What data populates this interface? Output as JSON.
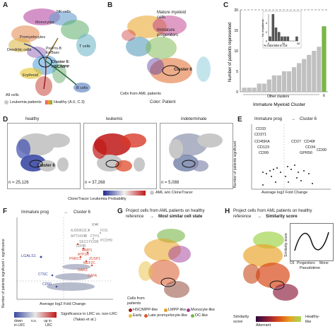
{
  "colors": {
    "healthy": "#f0a020",
    "leukemic": "#c01818",
    "indeterminate": "#7f8fb0",
    "aml_no_tracer": "#c8c8c8",
    "accent_green": "#7ab648",
    "bar_gray": "#c0c0c0"
  },
  "panelA": {
    "letter": "A",
    "labels": {
      "nk": "NK cells",
      "mono": "Monocytes",
      "promyelo": "Promyelocytes",
      "dendritic": "Dendritic cells",
      "preb": "Pre/Pro-B",
      "eobaso": "Eo/Baso",
      "tcells": "T cells",
      "cluster6": "Cluster 6:",
      "hscmpp": "HSC/MPP",
      "erythroid": "Erythroid",
      "bcells": "B cells",
      "allcells": "All cells"
    },
    "legend_leuk": "Leukemia patients",
    "legend_healthy": "Healthy (A.0, C.3)"
  },
  "panelB": {
    "letter": "B",
    "labels": {
      "mature": "Mature myeloid",
      "mature2": "cells",
      "immature": "Immature",
      "immature2": "progenitors",
      "cluster6": "Cluster 6",
      "aml": "Cells from AML patients"
    },
    "caption": "Color: Patient"
  },
  "panelC": {
    "letter": "C",
    "caption_other": "Other clusters",
    "inset_xlabel": "% total BM in C6",
    "inset_ylabel": "Nr. of patients",
    "inset_xticks": [
      "0",
      "20",
      "40"
    ],
    "inset_yticks": [
      "0",
      "2",
      "4"
    ]
  },
  "chart_data": [
    {
      "type": "bar",
      "ylabel": "Number of patients represented",
      "xlabel": "Immature Myeloid Cluster",
      "ylim": [
        0,
        20
      ],
      "yticks": [
        "0",
        "5",
        "10",
        "15",
        "20"
      ],
      "x_tick_label": "6",
      "values": [
        1,
        1,
        1,
        2,
        2,
        3,
        4,
        4,
        5,
        5,
        6,
        7,
        8,
        9,
        10,
        11,
        16
      ],
      "highlight_index": 16
    },
    {
      "type": "bar",
      "xlabel": "% total BM in C6",
      "ylabel": "Nr. of patients",
      "bins": [
        "0",
        "5",
        "10",
        "15",
        "20",
        "25",
        "30",
        "35",
        "40",
        "45"
      ],
      "values": [
        1,
        6,
        3,
        2,
        1,
        1,
        1,
        0,
        0,
        1
      ]
    }
  ],
  "panelD": {
    "letter": "D",
    "titles": [
      "healthy",
      "leukemic",
      "indeterminate"
    ],
    "counts": [
      "n = 25,126",
      "n = 37,268",
      "n = 5,088"
    ],
    "cluster6": "Cluster 6",
    "colorbar_label": "CloneTracer Leukemia Probability",
    "legend_aml": "AML w/o CloneTracer"
  },
  "panelE": {
    "letter": "E",
    "left_label": "Immature prog",
    "right_label": "Cluster 6",
    "ylabel": "Number of patients significant",
    "xlabel": "Average log2 Fold Change",
    "genes": [
      "CD33",
      "CD371",
      "CD45RA",
      "CD123",
      "CD99",
      "CD27",
      "CD49f",
      "CD34",
      "GPR56",
      "CD90"
    ]
  },
  "panelF": {
    "letter": "F",
    "left_label": "Immature prog",
    "right_label": "Cluster 6",
    "ylabel": "Number of patients significant + significance",
    "xlabel": "Average log2 Fold Change",
    "legend_title": "Significance in LRC vs. non-LRC",
    "legend_cite": "(Takao et al.)",
    "legend_down": "down",
    "legend_down2": "in LRC",
    "legend_ns": "n.s.",
    "legend_up": "up in",
    "legend_up2": "LRC",
    "genes_gray": [
      "RYF",
      "AJ009632.2",
      "FOS",
      "APTX4OR",
      "FTH1",
      "PCDH9",
      "SEC2",
      "FOSB",
      "LDHB"
    ],
    "genes_red": [
      "MMP1",
      "ATP1R",
      "PNRC1",
      "ZUSP1",
      "MEF2C",
      "GAR3",
      "CAFA"
    ],
    "genes_blue": [
      "LGALS1",
      "CTSC",
      "CD50"
    ]
  },
  "panelG": {
    "letter": "G",
    "title1": "Project cells from AML patients on healthy",
    "title2a": "reference",
    "title2b": "Most similar cell state",
    "caption": "Cells from",
    "caption2": "patients",
    "legend": [
      "HSC/MPP-like",
      "LMPP-like",
      "Monocyte-like",
      "Early",
      "Late promyelocyte-like",
      "DC-like"
    ]
  },
  "panelH": {
    "letter": "H",
    "title1": "Project cells from AML patients on healthy",
    "title2a": "reference",
    "title2b": "Similarity score",
    "inset_ylabel": "Similarity score",
    "inset_xticks": [
      "C6",
      "Progenitors",
      "Mono"
    ],
    "inset_xlabel": "Pseudotime",
    "cb_label": "Similarity",
    "cb_label2": "score",
    "cb_left": "Aberrant",
    "cb_right": "Healthy-",
    "cb_right2": "like"
  }
}
